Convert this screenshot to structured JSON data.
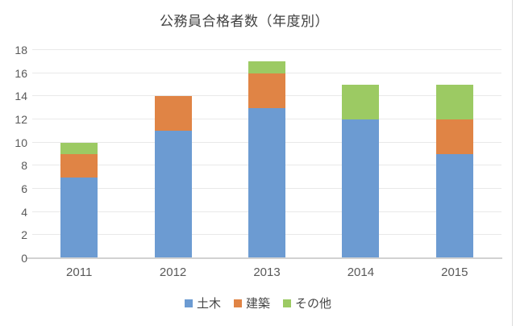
{
  "chart_data": {
    "type": "bar",
    "stacked": true,
    "title": "公務員合格者数（年度別）",
    "categories": [
      "2011",
      "2012",
      "2013",
      "2014",
      "2015"
    ],
    "series": [
      {
        "name": "土木",
        "color": "#6c9bd2",
        "values": [
          7,
          11,
          13,
          12,
          9
        ]
      },
      {
        "name": "建築",
        "color": "#e08445",
        "values": [
          2,
          3,
          3,
          0,
          3
        ]
      },
      {
        "name": "その他",
        "color": "#9cca63",
        "values": [
          1,
          0,
          1,
          3,
          3
        ]
      }
    ],
    "totals": [
      10,
      14,
      17,
      15,
      15
    ],
    "xlabel": "",
    "ylabel": "",
    "ylim": [
      0,
      18
    ],
    "ytick_step": 2,
    "yticks": [
      0,
      2,
      4,
      6,
      8,
      10,
      12,
      14,
      16,
      18
    ],
    "grid": "horizontal",
    "legend_position": "bottom",
    "colors": {
      "gridline": "#e9e9e9",
      "axis_line": "#d2d2d2",
      "title_text": "#404040",
      "axis_text": "#595959"
    }
  }
}
